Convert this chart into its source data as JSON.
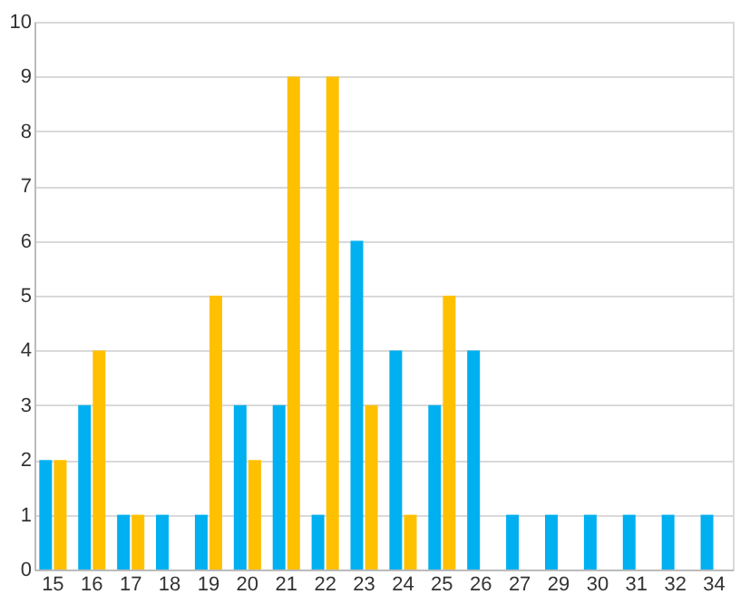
{
  "chart_data": {
    "type": "bar",
    "categories": [
      "15",
      "16",
      "17",
      "18",
      "19",
      "20",
      "21",
      "22",
      "23",
      "24",
      "25",
      "26",
      "27",
      "29",
      "30",
      "31",
      "32",
      "34"
    ],
    "series": [
      {
        "color": "#00b0f0",
        "values": [
          2,
          3,
          1,
          1,
          1,
          3,
          3,
          1,
          6,
          4,
          3,
          4,
          1,
          1,
          1,
          1,
          1,
          1
        ]
      },
      {
        "color": "#ffc000",
        "values": [
          2,
          4,
          1,
          0,
          5,
          2,
          9,
          9,
          3,
          1,
          5,
          0,
          0,
          0,
          0,
          0,
          0,
          0
        ]
      }
    ],
    "ylim": [
      0,
      10
    ],
    "yticks": [
      0,
      1,
      2,
      3,
      4,
      5,
      6,
      7,
      8,
      9,
      10
    ],
    "grid": "y",
    "legend": false
  }
}
